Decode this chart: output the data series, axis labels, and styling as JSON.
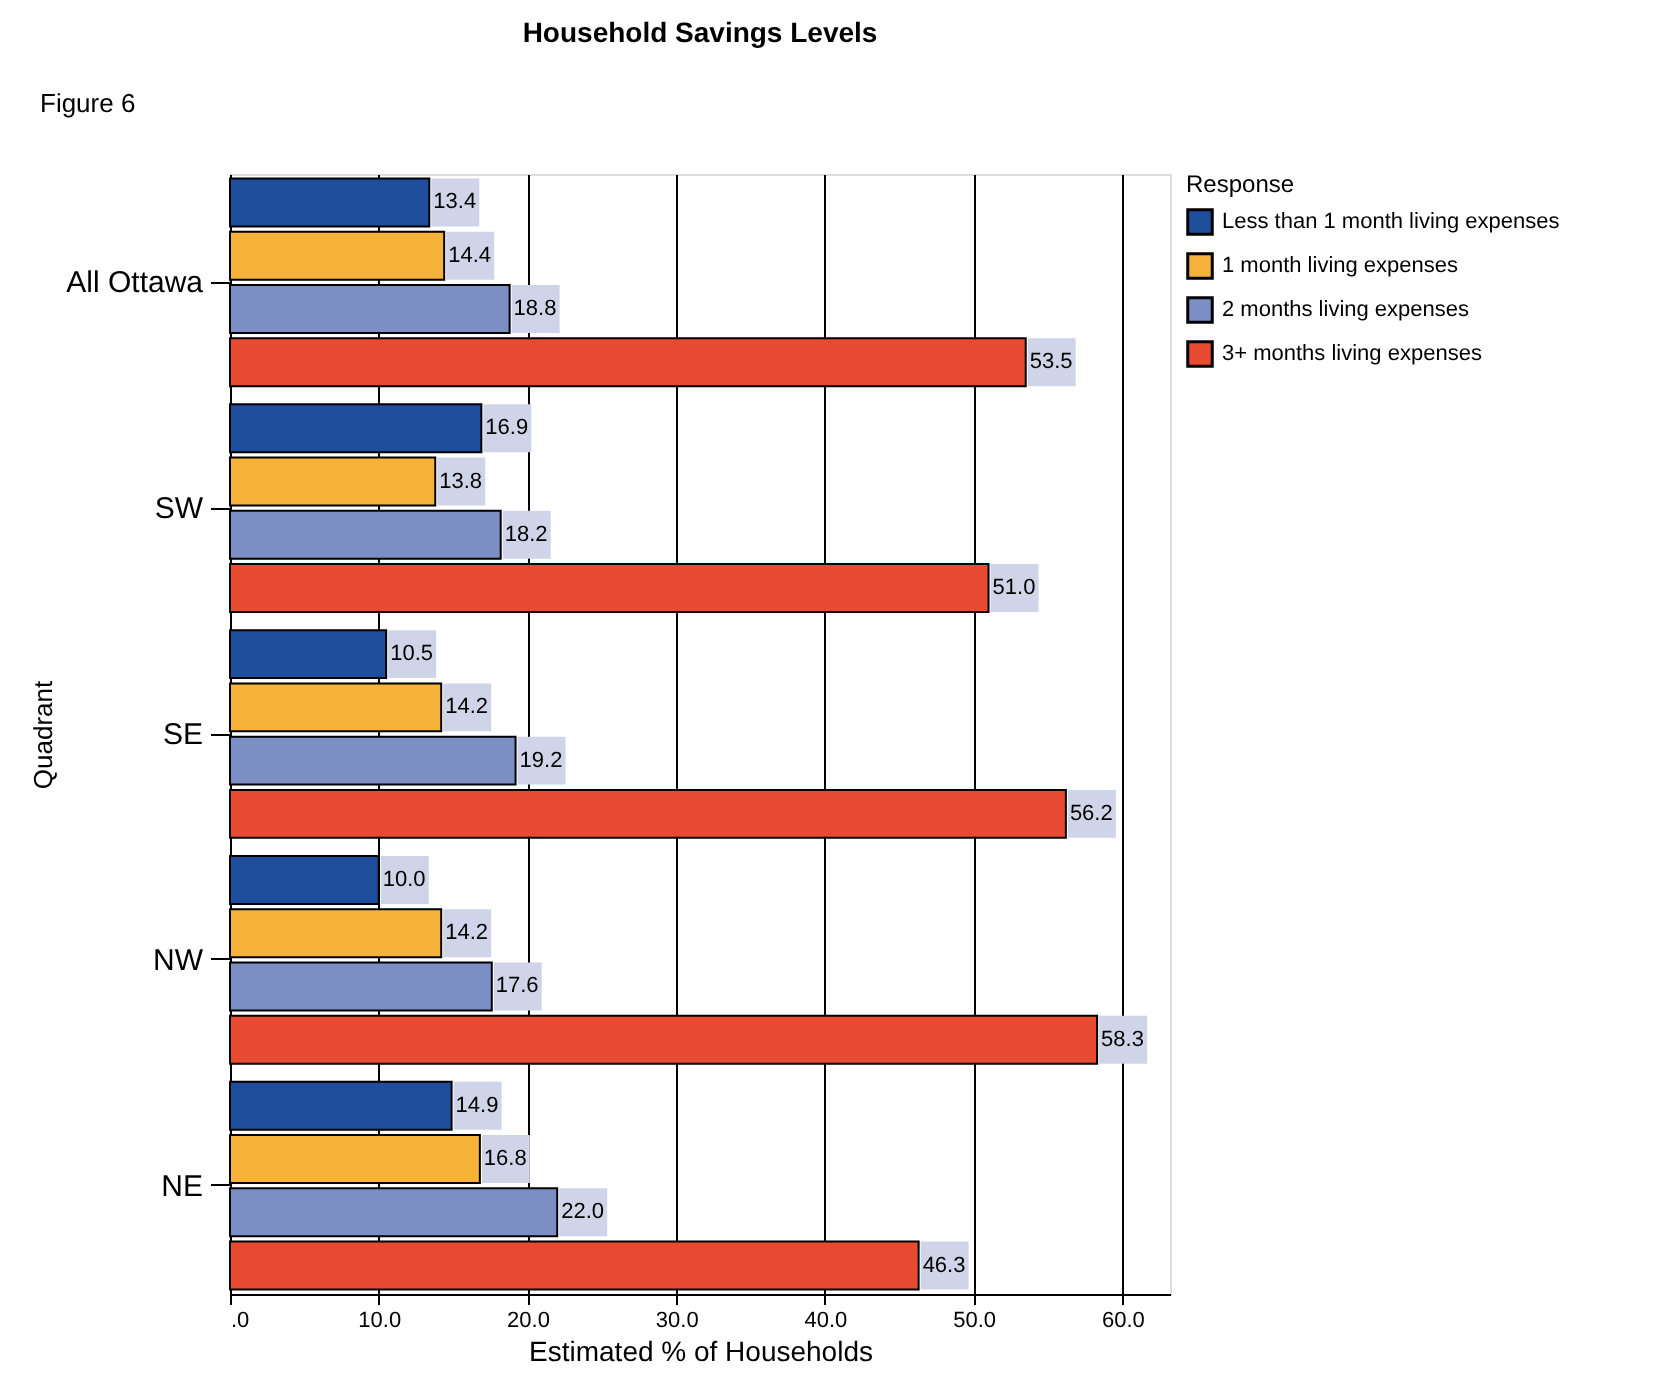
{
  "chart_data": {
    "type": "bar",
    "orientation": "horizontal",
    "title": "Household Savings Levels",
    "xlabel": "Estimated % of Households",
    "ylabel": "Quadrant",
    "legend_title": "Response",
    "annotations": [
      "Figure 6"
    ],
    "categories": [
      "All Ottawa",
      "SW",
      "SE",
      "NW",
      "NE"
    ],
    "series": [
      {
        "name": "Less than 1 month living expenses",
        "color": "#1f4e9c",
        "values": [
          13.4,
          16.9,
          10.5,
          10.0,
          14.9
        ],
        "value_labels": [
          "13.4",
          "16.9",
          "10.5",
          "10.0",
          "14.9"
        ]
      },
      {
        "name": "1 month living expenses",
        "color": "#f7b23b",
        "values": [
          14.4,
          13.8,
          14.2,
          14.2,
          16.8
        ],
        "value_labels": [
          "14.4",
          "13.8",
          "14.2",
          "14.2",
          "16.8"
        ]
      },
      {
        "name": "2 months living expenses",
        "color": "#7b8fc4",
        "values": [
          18.8,
          18.2,
          19.2,
          17.6,
          22.0
        ],
        "value_labels": [
          "18.8",
          "18.2",
          "19.2",
          "17.6",
          "22.0"
        ]
      },
      {
        "name": "3+ months living expenses",
        "color": "#e84a32",
        "values": [
          53.5,
          51.0,
          56.2,
          58.3,
          46.3
        ],
        "value_labels": [
          "53.5",
          "51.0",
          "56.2",
          "58.3",
          "46.3"
        ]
      }
    ],
    "xlim": [
      0,
      63.2
    ],
    "xticks": [
      {
        "value": 0,
        "label": ".0"
      },
      {
        "value": 10,
        "label": "10.0"
      },
      {
        "value": 20,
        "label": "20.0"
      },
      {
        "value": 30,
        "label": "30.0"
      },
      {
        "value": 40,
        "label": "40.0"
      },
      {
        "value": 50,
        "label": "50.0"
      },
      {
        "value": 60,
        "label": "60.0"
      }
    ],
    "grid": "x",
    "legend": "top right"
  }
}
